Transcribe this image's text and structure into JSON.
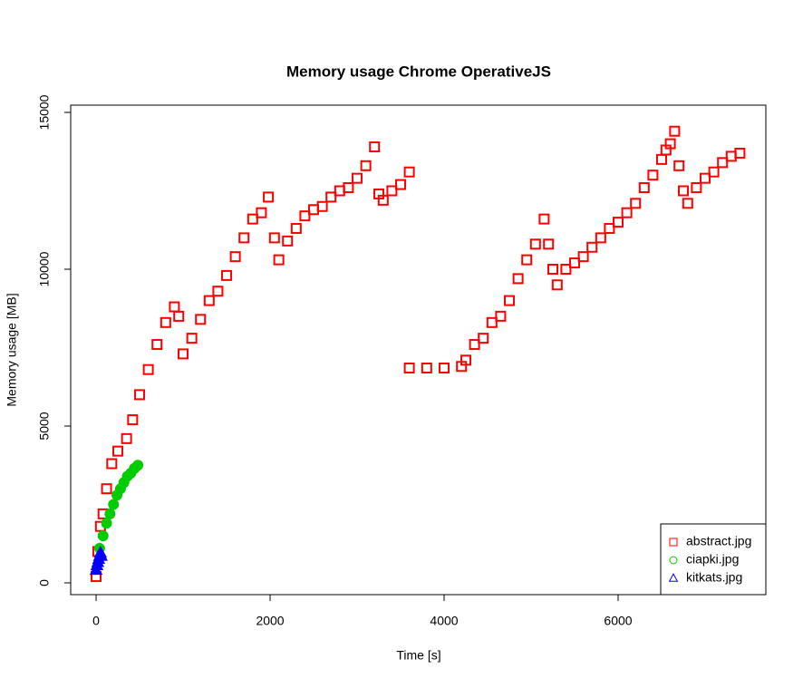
{
  "chart_data": {
    "type": "scatter",
    "title": "Memory usage Chrome OperativeJS",
    "xlabel": "Time [s]",
    "ylabel": "Memory usage [MB]",
    "xlim": [
      -292,
      7698
    ],
    "ylim": [
      -376,
      15231
    ],
    "xticks": [
      0,
      2000,
      4000,
      6000
    ],
    "yticks": [
      0,
      5000,
      10000,
      15000
    ],
    "legend": "bottom-right",
    "series": [
      {
        "name": "abstract.jpg",
        "color": "#ff0000",
        "shape": "square",
        "x": [
          0,
          20,
          50,
          80,
          120,
          180,
          250,
          350,
          420,
          500,
          600,
          700,
          800,
          900,
          950,
          1000,
          1100,
          1200,
          1300,
          1400,
          1500,
          1600,
          1700,
          1800,
          1900,
          1980,
          2050,
          2100,
          2200,
          2300,
          2400,
          2500,
          2600,
          2700,
          2800,
          2900,
          3000,
          3100,
          3200,
          3250,
          3300,
          3400,
          3500,
          3600,
          3600,
          3800,
          4000,
          4200,
          4250,
          4350,
          4450,
          4550,
          4650,
          4750,
          4850,
          4950,
          5050,
          5150,
          5200,
          5250,
          5300,
          5400,
          5500,
          5600,
          5700,
          5800,
          5900,
          6000,
          6100,
          6200,
          6300,
          6400,
          6500,
          6550,
          6600,
          6650,
          6700,
          6750,
          6800,
          6900,
          7000,
          7100,
          7200,
          7300,
          7400
        ],
        "values": [
          200,
          1000,
          1800,
          2200,
          3000,
          3800,
          4200,
          4600,
          5200,
          6000,
          6800,
          7600,
          8300,
          8800,
          8500,
          7300,
          7800,
          8400,
          9000,
          9300,
          9800,
          10400,
          11000,
          11600,
          11800,
          12300,
          11000,
          10300,
          10900,
          11300,
          11700,
          11900,
          12000,
          12300,
          12500,
          12600,
          12900,
          13300,
          13900,
          12400,
          12200,
          12500,
          12700,
          13100,
          6850,
          6850,
          6850,
          6900,
          7100,
          7600,
          7800,
          8300,
          8500,
          9000,
          9700,
          10300,
          10800,
          11600,
          10800,
          10000,
          9500,
          10000,
          10200,
          10400,
          10700,
          11000,
          11300,
          11500,
          11800,
          12100,
          12600,
          13000,
          13500,
          13800,
          14000,
          14400,
          13300,
          12500,
          12100,
          12600,
          12900,
          13100,
          13400,
          13600,
          13700
        ]
      },
      {
        "name": "ciapki.jpg",
        "color": "#00cd00",
        "shape": "circle",
        "x": [
          40,
          80,
          120,
          160,
          200,
          240,
          280,
          320,
          360,
          400,
          440,
          480
        ],
        "values": [
          1100,
          1500,
          1900,
          2200,
          2500,
          2800,
          3000,
          3200,
          3400,
          3500,
          3650,
          3750
        ]
      },
      {
        "name": "kitkats.jpg",
        "color": "#0000ff",
        "shape": "triangle",
        "x": [
          0,
          10,
          20,
          30,
          40,
          50,
          60
        ],
        "values": [
          400,
          550,
          650,
          750,
          850,
          950,
          850
        ]
      }
    ]
  }
}
